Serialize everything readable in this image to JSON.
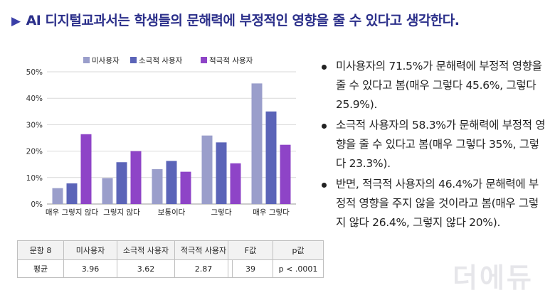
{
  "title": "AI 디지털교과서는 학생들의 문해력에 부정적인 영향을 줄 수 있다고 생각한다.",
  "title_marker": "▶",
  "chart_data": {
    "type": "bar",
    "categories": [
      "매우 그렇지 않다",
      "그렇지 않다",
      "보통이다",
      "그렇다",
      "매우 그렇다"
    ],
    "series": [
      {
        "name": "미사용자",
        "color": "#9a9ecb",
        "values": [
          6.0,
          9.8,
          13.2,
          25.9,
          45.6
        ]
      },
      {
        "name": "소극적 사용자",
        "color": "#5b64b8",
        "values": [
          7.8,
          15.8,
          16.3,
          23.3,
          35.0
        ]
      },
      {
        "name": "적극적 사용자",
        "color": "#8e44c7",
        "values": [
          26.4,
          20.0,
          12.2,
          15.4,
          22.4
        ]
      }
    ],
    "yticks": [
      "0%",
      "10%",
      "20%",
      "30%",
      "40%",
      "50%"
    ],
    "ylim": [
      0,
      50
    ],
    "grid": true,
    "legend": "top"
  },
  "bullets": [
    "미사용자의 71.5%가 문해력에 부정적 영향을 줄 수 있다고 봄(매우 그렇다 45.6%, 그렇다 25.9%).",
    "소극적 사용자의 58.3%가 문해력에 부정적 영향을 줄 수 있다고 봄(매우 그렇다 35%, 그렇다 23.3%).",
    "반면, 적극적 사용자의 46.4%가 문해력에 부정적 영향을 주지 않을 것이라고 봄(매우 그렇지 않다 26.4%, 그렇지 않다 20%)."
  ],
  "table1": {
    "headers": [
      "문항 8",
      "미사용자",
      "소극적 사용자",
      "적극적 사용자"
    ],
    "row": [
      "평균",
      "3.96",
      "3.62",
      "2.87"
    ]
  },
  "table2": {
    "headers": [
      "F값",
      "p값"
    ],
    "row": [
      "39",
      "p < .0001"
    ]
  },
  "watermark": "더에듀"
}
